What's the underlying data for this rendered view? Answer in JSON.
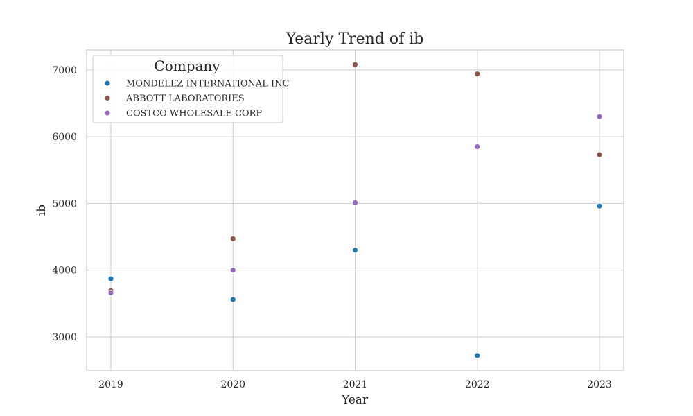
{
  "chart_data": {
    "type": "scatter",
    "title": "Yearly Trend of ib",
    "xlabel": "Year",
    "ylabel": "ib",
    "x": [
      "2019",
      "2020",
      "2021",
      "2022",
      "2023"
    ],
    "ylim": [
      2500,
      7300
    ],
    "yticks": [
      "3000",
      "4000",
      "5000",
      "6000",
      "7000"
    ],
    "grid": true,
    "legend": {
      "title": "Company",
      "placement": "top-left"
    },
    "series": [
      {
        "name": "MONDELEZ INTERNATIONAL INC",
        "color": "#1f77b4",
        "values": [
          3870,
          3560,
          4300,
          2720,
          4960
        ]
      },
      {
        "name": "ABBOTT LABORATORIES",
        "color": "#8c564b",
        "values": [
          3690,
          4470,
          7080,
          6940,
          5730
        ]
      },
      {
        "name": "COSTCO WHOLESALE CORP",
        "color": "#9467bd",
        "values": [
          3660,
          4000,
          5010,
          5850,
          6300
        ]
      }
    ]
  }
}
